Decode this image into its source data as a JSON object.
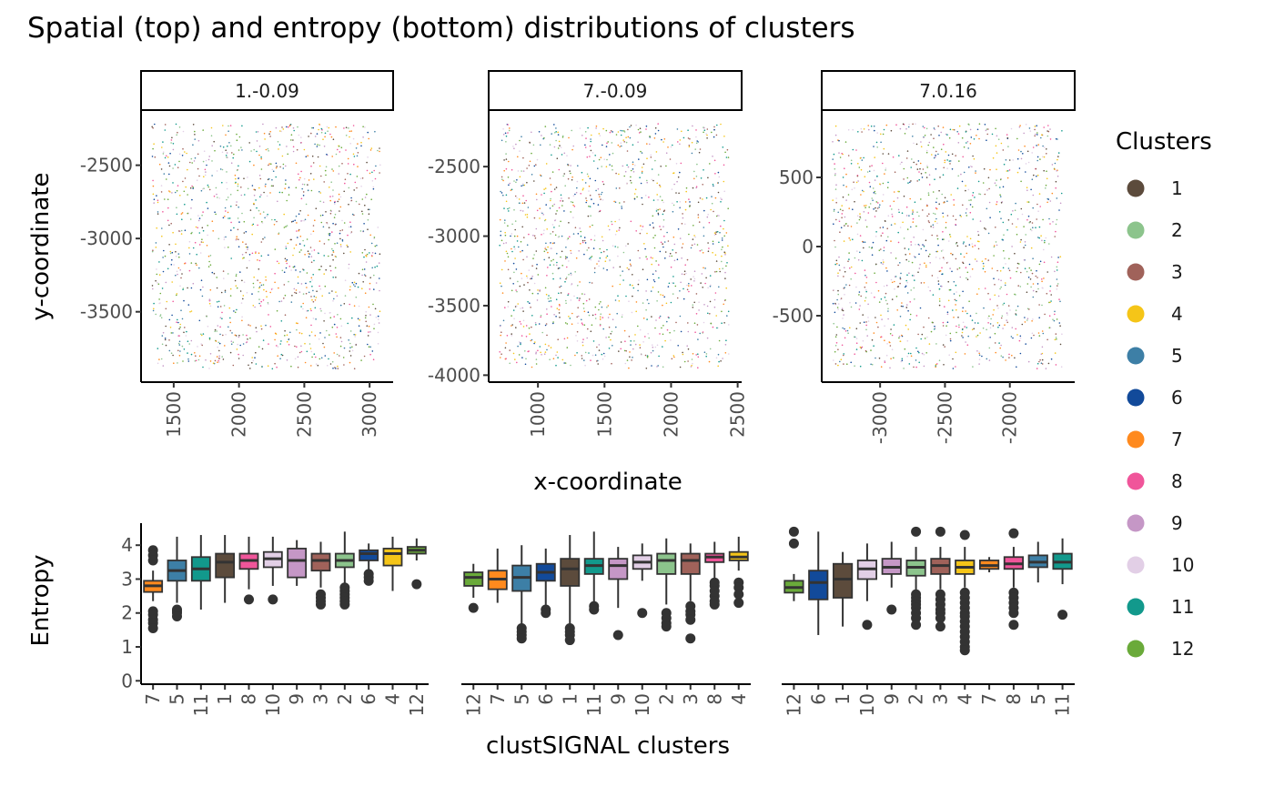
{
  "title": "Spatial (top) and entropy (bottom) distributions of clusters",
  "legend": {
    "title": "Clusters",
    "items": [
      {
        "label": "1",
        "color": "#5C4B3C"
      },
      {
        "label": "2",
        "color": "#8CC48C"
      },
      {
        "label": "3",
        "color": "#A0625A"
      },
      {
        "label": "4",
        "color": "#F5C518"
      },
      {
        "label": "5",
        "color": "#3D7FA6"
      },
      {
        "label": "6",
        "color": "#124A9A"
      },
      {
        "label": "7",
        "color": "#FF8A1E"
      },
      {
        "label": "8",
        "color": "#F0559A"
      },
      {
        "label": "9",
        "color": "#C597C6"
      },
      {
        "label": "10",
        "color": "#E2CFE6"
      },
      {
        "label": "11",
        "color": "#12998C"
      },
      {
        "label": "12",
        "color": "#6AAA3A"
      }
    ]
  },
  "chart_data": [
    {
      "type": "scatter",
      "panel": "1.-0.09",
      "xlabel": "x-coordinate",
      "ylabel": "y-coordinate",
      "xlim": [
        1250,
        3180
      ],
      "ylim": [
        -3980,
        -2130
      ],
      "xticks": [
        1500,
        2000,
        2500,
        3000
      ],
      "yticks": [
        -2500,
        -3000,
        -3500
      ],
      "point_density": "~1300 small points spread uniformly across the panel, coloured by cluster"
    },
    {
      "type": "scatter",
      "panel": "7.-0.09",
      "xlabel": "x-coordinate",
      "ylabel": "y-coordinate",
      "xlim": [
        630,
        2530
      ],
      "ylim": [
        -4050,
        -2100
      ],
      "xticks": [
        1000,
        1500,
        2000,
        2500
      ],
      "yticks": [
        -2500,
        -3000,
        -3500,
        -4000
      ],
      "point_density": "~1300 small points spread uniformly across the panel, coloured by cluster"
    },
    {
      "type": "scatter",
      "panel": "7.0.16",
      "xlabel": "x-coordinate",
      "ylabel": "y-coordinate",
      "xlim": [
        -3450,
        -1500
      ],
      "ylim": [
        -980,
        980
      ],
      "xticks": [
        -3000,
        -2500,
        -2000
      ],
      "yticks": [
        500,
        0,
        -500
      ],
      "point_density": "~1300 small points spread uniformly across the panel, coloured by cluster"
    },
    {
      "type": "box",
      "panel": "1.-0.09",
      "xlabel": "clustSIGNAL clusters",
      "ylabel": "Entropy",
      "ylim": [
        -0.1,
        4.65
      ],
      "yticks": [
        0,
        1,
        2,
        3,
        4
      ],
      "boxes": [
        {
          "cluster": "7",
          "min": 2.35,
          "q1": 2.62,
          "median": 2.8,
          "q3": 2.95,
          "max": 3.25,
          "outliers": [
            3.85,
            3.7,
            3.55,
            2.05,
            1.95,
            1.8,
            1.7,
            1.55
          ]
        },
        {
          "cluster": "5",
          "min": 2.3,
          "q1": 2.95,
          "median": 3.25,
          "q3": 3.55,
          "max": 4.25,
          "outliers": [
            2.1,
            2.05,
            2.0,
            1.9
          ]
        },
        {
          "cluster": "11",
          "min": 2.1,
          "q1": 2.95,
          "median": 3.3,
          "q3": 3.65,
          "max": 4.3,
          "outliers": []
        },
        {
          "cluster": "1",
          "min": 2.3,
          "q1": 3.05,
          "median": 3.5,
          "q3": 3.75,
          "max": 4.3,
          "outliers": []
        },
        {
          "cluster": "8",
          "min": 2.7,
          "q1": 3.3,
          "median": 3.55,
          "q3": 3.75,
          "max": 4.25,
          "outliers": [
            2.4
          ]
        },
        {
          "cluster": "10",
          "min": 2.8,
          "q1": 3.35,
          "median": 3.6,
          "q3": 3.8,
          "max": 4.25,
          "outliers": [
            2.4
          ]
        },
        {
          "cluster": "9",
          "min": 2.8,
          "q1": 3.05,
          "median": 3.55,
          "q3": 3.9,
          "max": 4.15,
          "outliers": []
        },
        {
          "cluster": "3",
          "min": 2.75,
          "q1": 3.25,
          "median": 3.55,
          "q3": 3.75,
          "max": 4.1,
          "outliers": [
            2.55,
            2.45,
            2.35,
            2.25
          ]
        },
        {
          "cluster": "2",
          "min": 2.85,
          "q1": 3.35,
          "median": 3.55,
          "q3": 3.75,
          "max": 4.4,
          "outliers": [
            2.75,
            2.65,
            2.55,
            2.45,
            2.35,
            2.25
          ]
        },
        {
          "cluster": "6",
          "min": 3.25,
          "q1": 3.55,
          "median": 3.75,
          "q3": 3.85,
          "max": 4.05,
          "outliers": [
            3.15,
            3.05,
            2.95
          ]
        },
        {
          "cluster": "4",
          "min": 2.65,
          "q1": 3.4,
          "median": 3.75,
          "q3": 3.9,
          "max": 4.25,
          "outliers": []
        },
        {
          "cluster": "12",
          "min": 3.55,
          "q1": 3.75,
          "median": 3.85,
          "q3": 3.95,
          "max": 4.2,
          "outliers": [
            2.85
          ]
        }
      ]
    },
    {
      "type": "box",
      "panel": "7.-0.09",
      "xlabel": "clustSIGNAL clusters",
      "ylabel": "Entropy",
      "ylim": [
        -0.1,
        4.65
      ],
      "yticks": [
        0,
        1,
        2,
        3,
        4
      ],
      "boxes": [
        {
          "cluster": "12",
          "min": 2.45,
          "q1": 2.8,
          "median": 3.05,
          "q3": 3.2,
          "max": 3.45,
          "outliers": [
            2.15
          ]
        },
        {
          "cluster": "7",
          "min": 2.3,
          "q1": 2.7,
          "median": 3.0,
          "q3": 3.25,
          "max": 3.9,
          "outliers": []
        },
        {
          "cluster": "5",
          "min": 1.65,
          "q1": 2.65,
          "median": 3.05,
          "q3": 3.4,
          "max": 4.0,
          "outliers": [
            1.55,
            1.45,
            1.35,
            1.25
          ]
        },
        {
          "cluster": "6",
          "min": 2.2,
          "q1": 2.95,
          "median": 3.2,
          "q3": 3.45,
          "max": 3.9,
          "outliers": [
            2.1,
            2.0
          ]
        },
        {
          "cluster": "1",
          "min": 1.65,
          "q1": 2.8,
          "median": 3.3,
          "q3": 3.6,
          "max": 4.3,
          "outliers": [
            1.55,
            1.45,
            1.35,
            1.2
          ]
        },
        {
          "cluster": "11",
          "min": 2.3,
          "q1": 3.15,
          "median": 3.4,
          "q3": 3.6,
          "max": 4.4,
          "outliers": [
            2.2,
            2.1
          ]
        },
        {
          "cluster": "9",
          "min": 2.15,
          "q1": 3.0,
          "median": 3.4,
          "q3": 3.6,
          "max": 3.95,
          "outliers": [
            1.35
          ]
        },
        {
          "cluster": "10",
          "min": 2.95,
          "q1": 3.3,
          "median": 3.5,
          "q3": 3.7,
          "max": 4.05,
          "outliers": [
            2.0
          ]
        },
        {
          "cluster": "2",
          "min": 2.25,
          "q1": 3.15,
          "median": 3.55,
          "q3": 3.75,
          "max": 4.2,
          "outliers": [
            2.0,
            1.85,
            1.7,
            1.6
          ]
        },
        {
          "cluster": "3",
          "min": 2.35,
          "q1": 3.15,
          "median": 3.55,
          "q3": 3.75,
          "max": 4.05,
          "outliers": [
            2.2,
            2.05,
            1.95,
            1.8,
            1.25
          ]
        },
        {
          "cluster": "8",
          "min": 3.0,
          "q1": 3.5,
          "median": 3.65,
          "q3": 3.75,
          "max": 4.1,
          "outliers": [
            2.9,
            2.8,
            2.65,
            2.5,
            2.35,
            2.25
          ]
        },
        {
          "cluster": "4",
          "min": 3.25,
          "q1": 3.55,
          "median": 3.65,
          "q3": 3.8,
          "max": 4.25,
          "outliers": [
            2.9,
            2.75,
            2.55,
            2.3
          ]
        }
      ]
    },
    {
      "type": "box",
      "panel": "7.0.16",
      "xlabel": "clustSIGNAL clusters",
      "ylabel": "Entropy",
      "ylim": [
        -0.1,
        4.65
      ],
      "yticks": [
        0,
        1,
        2,
        3,
        4
      ],
      "boxes": [
        {
          "cluster": "12",
          "min": 2.35,
          "q1": 2.6,
          "median": 2.75,
          "q3": 2.95,
          "max": 3.15,
          "outliers": [
            4.4,
            4.05
          ]
        },
        {
          "cluster": "6",
          "min": 1.35,
          "q1": 2.4,
          "median": 2.9,
          "q3": 3.25,
          "max": 4.4,
          "outliers": []
        },
        {
          "cluster": "1",
          "min": 1.6,
          "q1": 2.45,
          "median": 3.0,
          "q3": 3.45,
          "max": 3.8,
          "outliers": []
        },
        {
          "cluster": "10",
          "min": 2.35,
          "q1": 3.0,
          "median": 3.3,
          "q3": 3.55,
          "max": 4.05,
          "outliers": [
            1.65
          ]
        },
        {
          "cluster": "9",
          "min": 2.75,
          "q1": 3.15,
          "median": 3.35,
          "q3": 3.6,
          "max": 4.1,
          "outliers": [
            2.1
          ]
        },
        {
          "cluster": "2",
          "min": 2.65,
          "q1": 3.1,
          "median": 3.35,
          "q3": 3.55,
          "max": 3.95,
          "outliers": [
            4.4,
            2.55,
            2.45,
            2.35,
            2.25,
            2.15,
            2.0,
            1.85,
            1.65
          ]
        },
        {
          "cluster": "3",
          "min": 2.7,
          "q1": 3.15,
          "median": 3.4,
          "q3": 3.6,
          "max": 3.95,
          "outliers": [
            4.4,
            2.55,
            2.4,
            2.25,
            2.1,
            2.0,
            1.85,
            1.6
          ]
        },
        {
          "cluster": "4",
          "min": 2.75,
          "q1": 3.15,
          "median": 3.35,
          "q3": 3.55,
          "max": 3.95,
          "outliers": [
            4.3,
            2.6,
            2.45,
            2.3,
            2.15,
            2.0,
            1.9,
            1.75,
            1.6,
            1.45,
            1.3,
            1.15,
            1.0,
            0.9
          ]
        },
        {
          "cluster": "7",
          "min": 3.2,
          "q1": 3.3,
          "median": 3.4,
          "q3": 3.55,
          "max": 3.65,
          "outliers": []
        },
        {
          "cluster": "8",
          "min": 2.75,
          "q1": 3.3,
          "median": 3.45,
          "q3": 3.65,
          "max": 3.95,
          "outliers": [
            4.35,
            2.6,
            2.45,
            2.3,
            2.15,
            2.0,
            1.65
          ]
        },
        {
          "cluster": "5",
          "min": 2.9,
          "q1": 3.35,
          "median": 3.5,
          "q3": 3.7,
          "max": 4.1,
          "outliers": []
        },
        {
          "cluster": "11",
          "min": 2.85,
          "q1": 3.3,
          "median": 3.5,
          "q3": 3.75,
          "max": 4.2,
          "outliers": [
            1.95
          ]
        }
      ]
    }
  ]
}
